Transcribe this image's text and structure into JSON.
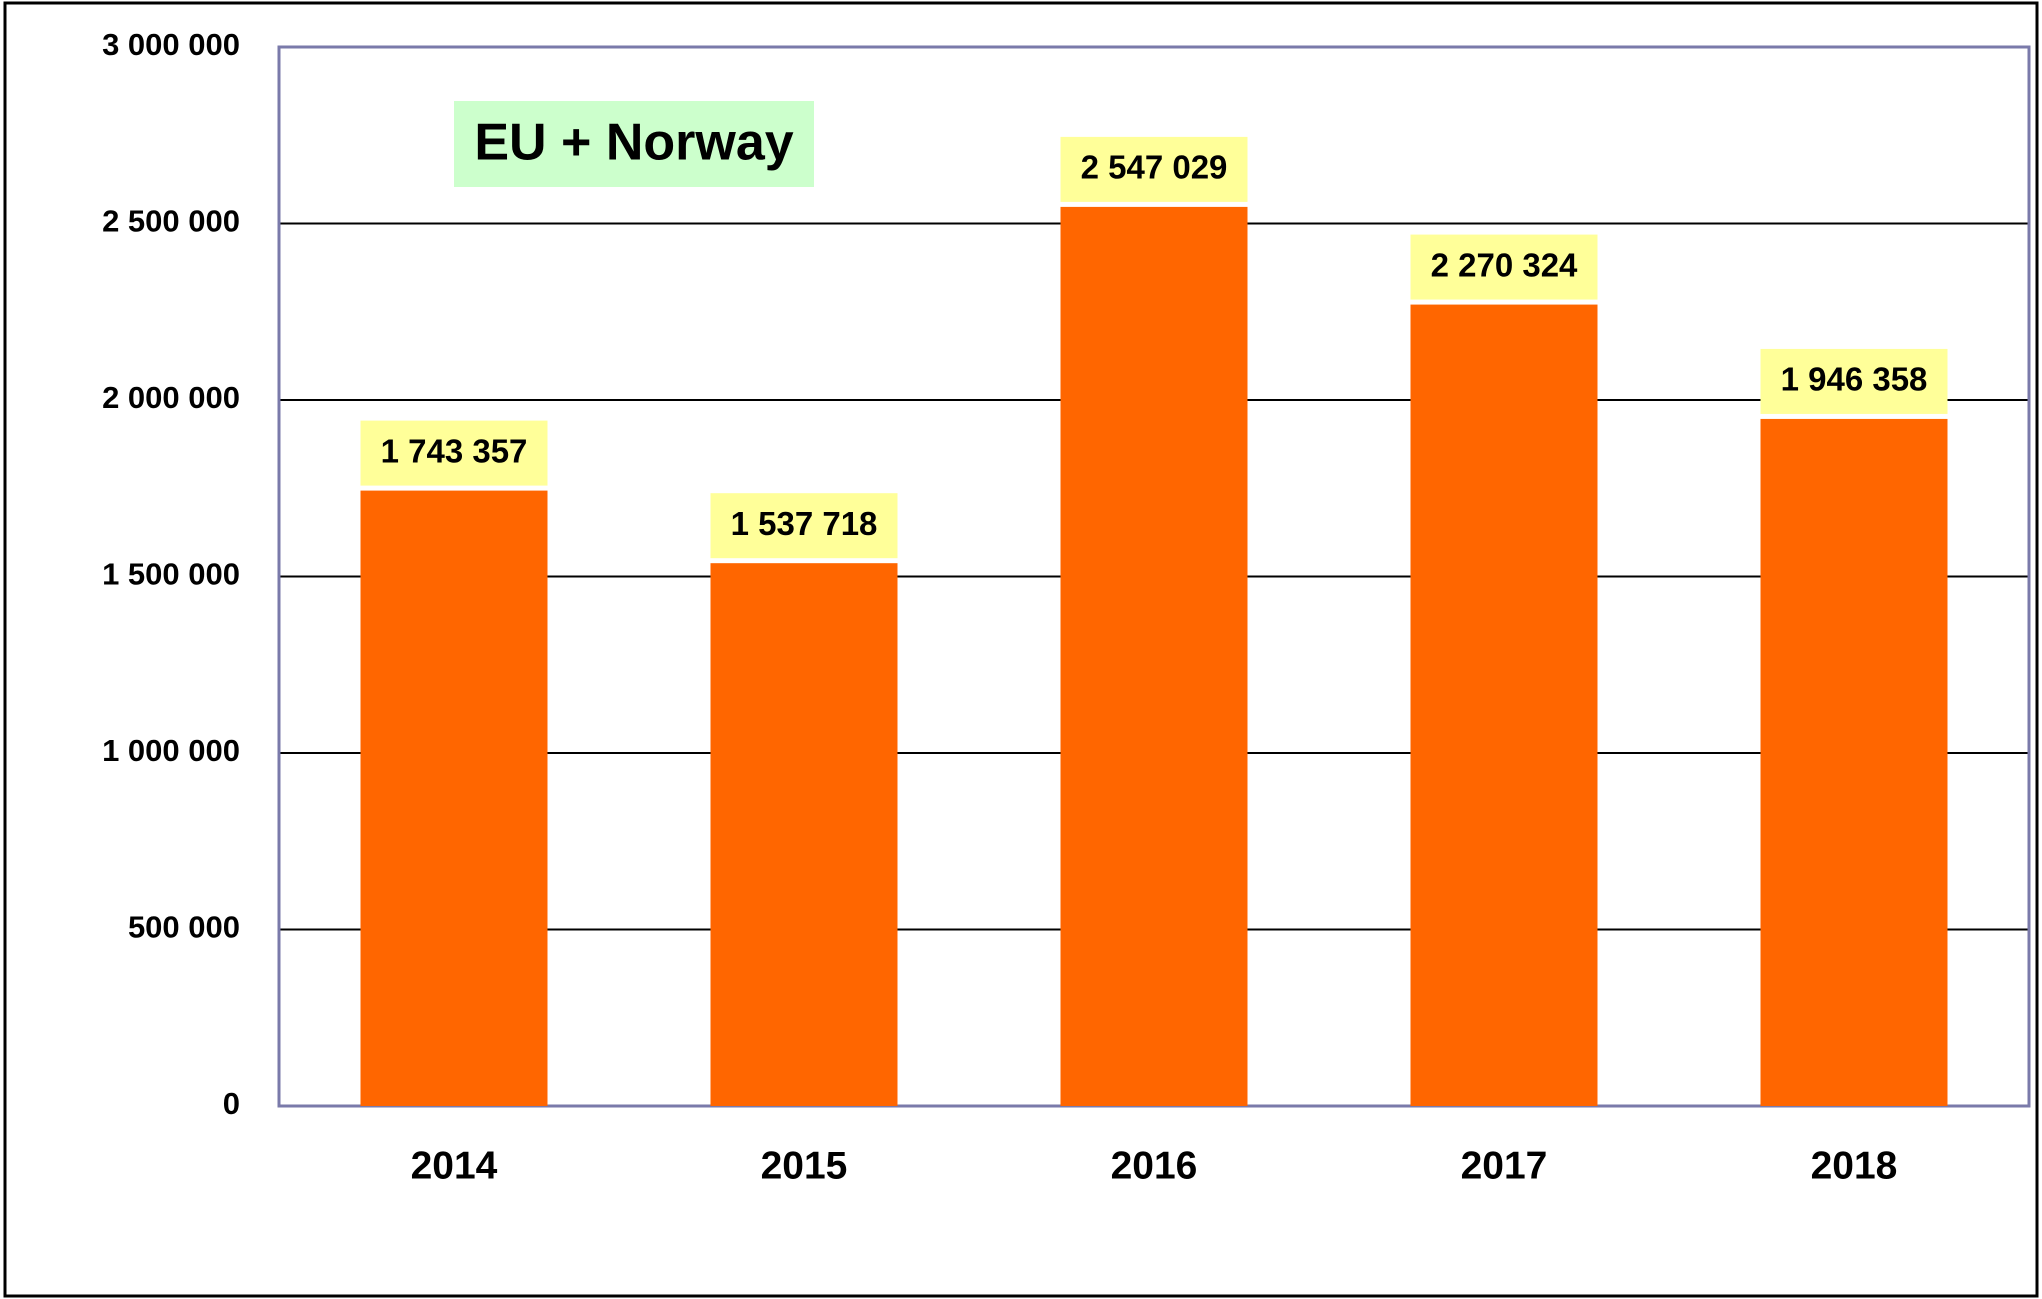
{
  "chart_data": {
    "type": "bar",
    "title": "EU + Norway",
    "categories": [
      "2014",
      "2015",
      "2016",
      "2017",
      "2018"
    ],
    "values": [
      1743357,
      1537718,
      2547029,
      2270324,
      1946358
    ],
    "value_labels": [
      "1 743 357",
      "1 537 718",
      "2 547 029",
      "2 270 324",
      "1 946 358"
    ],
    "color": "#ff6600",
    "ylim": [
      0,
      3000000
    ],
    "yticks": [
      0,
      {
        "value": 500000,
        "label": "500 000"
      },
      {
        "value": 1000000,
        "label": "1 000 000"
      },
      {
        "value": 1500000,
        "label": "1 500 000"
      },
      {
        "value": 2000000,
        "label": "2 000 000"
      },
      {
        "value": 2500000,
        "label": "2 500 000"
      },
      {
        "value": 3000000,
        "label": "3 000 000"
      }
    ],
    "grid": true
  }
}
